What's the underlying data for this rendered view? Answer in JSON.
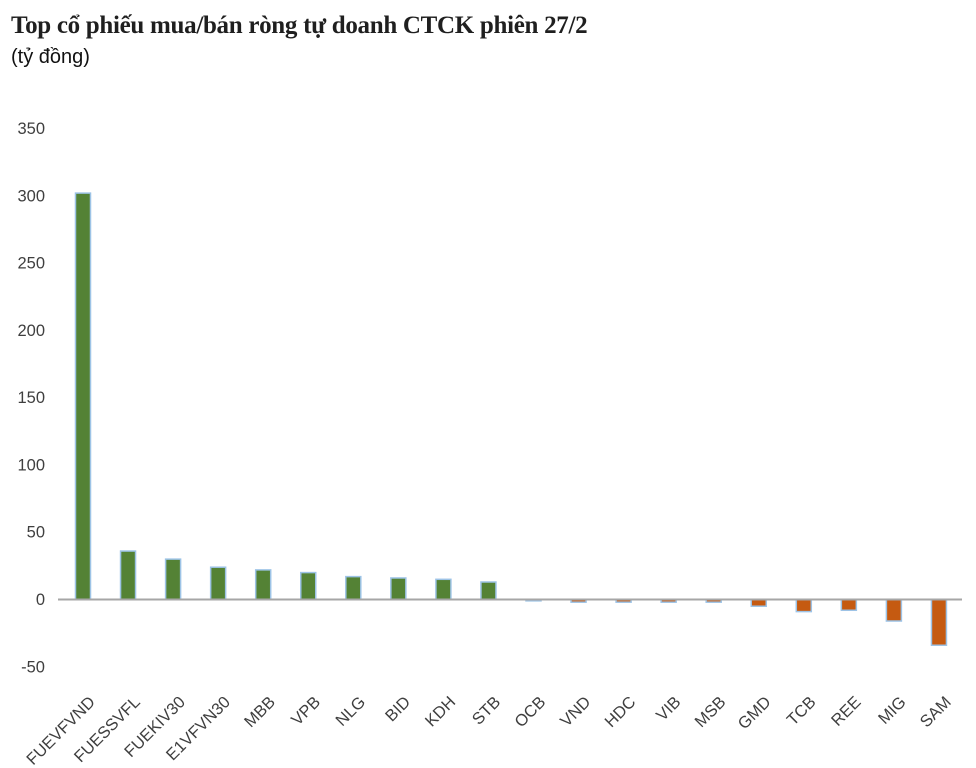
{
  "header": {
    "title": "Top cổ phiếu mua/bán ròng tự doanh CTCK phiên 27/2",
    "subtitle": "(tỷ đồng)"
  },
  "chart_data": {
    "type": "bar",
    "title": "Top cổ phiếu mua/bán ròng tự doanh CTCK phiên 27/2",
    "unit_label": "(tỷ đồng)",
    "categories": [
      "FUEVFVND",
      "FUESSVFL",
      "FUEKIV30",
      "E1VFVN30",
      "MBB",
      "VPB",
      "NLG",
      "BID",
      "KDH",
      "STB",
      "OCB",
      "VND",
      "HDC",
      "VIB",
      "MSB",
      "GMD",
      "TCB",
      "REE",
      "MIG",
      "SAM"
    ],
    "values": [
      302,
      36,
      30,
      24,
      22,
      20,
      17,
      16,
      15,
      13,
      -1,
      -2,
      -2,
      -2,
      -2,
      -5,
      -9,
      -8,
      -16,
      -34
    ],
    "xlabel": "",
    "ylabel": "",
    "yticks": [
      350,
      300,
      250,
      200,
      150,
      100,
      50,
      0,
      -50
    ],
    "ylim": [
      -50,
      350
    ],
    "grid": false,
    "legend": "none",
    "x_label_rotation_deg": 45,
    "colors": {
      "positive_bar": "#548235",
      "negative_bar": "#C55A11",
      "bar_border": "#9DC3E6",
      "axis_line": "#A6A6A6",
      "tick_text": "#3F3F3F",
      "title_text": "#1F1F1F"
    }
  }
}
